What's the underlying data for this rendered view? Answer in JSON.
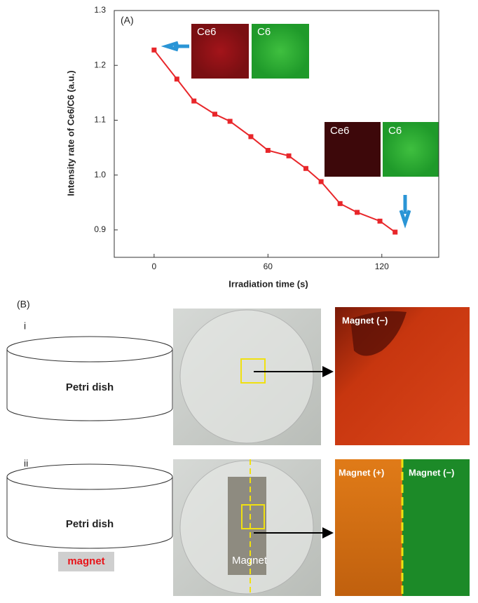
{
  "chart_data": {
    "type": "line",
    "panel_label": "(A)",
    "x_label": "Irradiation time (s)",
    "y_label": "Intensity rate of Ce6/C6 (a.u.)",
    "x": [
      0,
      12,
      21,
      32,
      40,
      51,
      60,
      71,
      80,
      88,
      98,
      107,
      119,
      127
    ],
    "series": [
      {
        "color": "#e8262a",
        "values": [
          1.228,
          1.175,
          1.135,
          1.111,
          1.098,
          1.07,
          1.045,
          1.035,
          1.012,
          0.988,
          0.948,
          0.932,
          0.916,
          0.896
        ]
      }
    ],
    "xlim": [
      -21,
      150
    ],
    "xticks": [
      0,
      60,
      120
    ],
    "ylim": [
      0.85,
      1.3
    ],
    "yticks": [
      0.9,
      {
        "value": 1.0,
        "label": "1.0"
      },
      1.1,
      1.2,
      1.3
    ],
    "annotations": {
      "start_ce6": "Ce6",
      "start_c6": "C6",
      "end_ce6": "Ce6",
      "end_c6": "C6"
    }
  },
  "panel_b": {
    "panel_label": "(B)",
    "row_i": {
      "label": "i",
      "dish": "Petri dish",
      "image_label": "Magnet (−)"
    },
    "row_ii": {
      "label": "ii",
      "dish": "Petri dish",
      "magnet": "magnet",
      "photo_label": "Magnet",
      "left_label": "Magnet (+)",
      "right_label": "Magnet (−)"
    }
  }
}
